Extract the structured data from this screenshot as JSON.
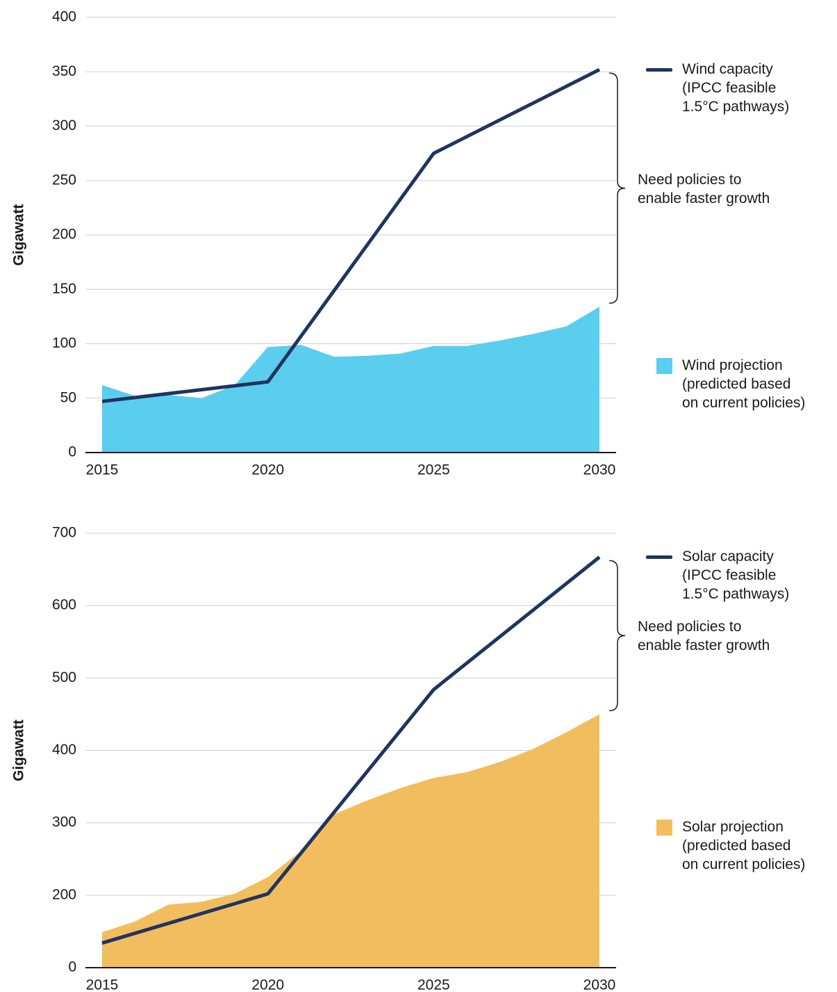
{
  "chart_data": [
    {
      "type": "line",
      "ylabel": "Gigawatt",
      "xlim": [
        2015,
        2030
      ],
      "xticks": [
        2015,
        2020,
        2025,
        2030
      ],
      "ylim": [
        0,
        400
      ],
      "yticks": [
        0,
        50,
        100,
        150,
        200,
        250,
        300,
        350,
        400
      ],
      "grid": true,
      "annotation": "Need policies to\nenable faster growth",
      "series": [
        {
          "name": "Wind projection\n(predicted based\non current policies)",
          "type": "area",
          "color": "#5bcdee",
          "x": [
            2015,
            2016,
            2017,
            2018,
            2019,
            2020,
            2021,
            2022,
            2023,
            2024,
            2025,
            2026,
            2027,
            2028,
            2029,
            2030
          ],
          "values": [
            62,
            52,
            53,
            50,
            62,
            97,
            99,
            88,
            89,
            91,
            98,
            98,
            103,
            109,
            116,
            134
          ]
        },
        {
          "name": "Wind capacity\n(IPCC feasible\n1.5°C pathways)",
          "type": "line",
          "color": "#1f3461",
          "x": [
            2015,
            2020,
            2025,
            2030
          ],
          "values": [
            47,
            65,
            275,
            352
          ]
        }
      ]
    },
    {
      "type": "line",
      "ylabel": "Gigawatt",
      "xlim": [
        2015,
        2030
      ],
      "xticks": [
        2015,
        2020,
        2025,
        2030
      ],
      "ylim": [
        100,
        700
      ],
      "yticks": [
        0,
        200,
        300,
        400,
        500,
        600,
        700
      ],
      "grid": true,
      "annotation": "Need policies to\nenable faster growth",
      "series": [
        {
          "name": "Solar projection\n(predicted based\non current policies)",
          "type": "area",
          "color": "#f1bd5f",
          "x": [
            2015,
            2016,
            2017,
            2018,
            2019,
            2020,
            2021,
            2022,
            2023,
            2024,
            2025,
            2026,
            2027,
            2028,
            2029,
            2030
          ],
          "values": [
            149,
            164,
            187,
            191,
            202,
            225,
            261,
            312,
            331,
            348,
            362,
            370,
            384,
            402,
            425,
            450
          ]
        },
        {
          "name": "Solar capacity\n(IPCC feasible\n1.5°C pathways)",
          "type": "line",
          "color": "#1f3461",
          "x": [
            2015,
            2020,
            2025,
            2030
          ],
          "values": [
            134,
            202,
            484,
            667
          ]
        }
      ]
    }
  ]
}
